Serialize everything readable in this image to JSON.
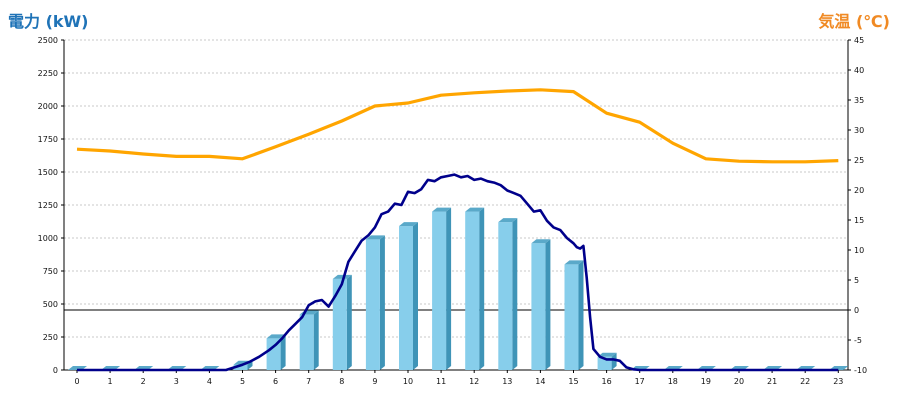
{
  "header": {
    "left_axis_title": "電力 (kW)",
    "right_axis_title": "気温 (℃)"
  },
  "colors": {
    "bar_front": "#87ceeb",
    "bar_side": "#3f94b7",
    "bar_top": "#5aa9c9",
    "power_line": "#00008b",
    "temp_line": "#ffa500",
    "left_title": "#1f73b7",
    "right_title": "#f08a24",
    "grid": "#c8c8c8",
    "zero_line": "#000000"
  },
  "chart_data": {
    "type": "bar",
    "categories": [
      "0",
      "1",
      "2",
      "3",
      "4",
      "5",
      "6",
      "7",
      "8",
      "9",
      "10",
      "11",
      "12",
      "13",
      "14",
      "15",
      "16",
      "17",
      "18",
      "19",
      "20",
      "21",
      "22",
      "23"
    ],
    "left_axis": {
      "label": "電力 (kW)",
      "ylim": [
        0,
        2500
      ],
      "ticks": [
        0,
        250,
        500,
        750,
        1000,
        1250,
        1500,
        1750,
        2000,
        2250,
        2500
      ]
    },
    "right_axis": {
      "label": "気温 (℃)",
      "ylim": [
        -10,
        45
      ],
      "ticks": [
        -10,
        -5,
        0,
        5,
        10,
        15,
        20,
        25,
        30,
        35,
        40,
        45
      ]
    },
    "grid": true,
    "reference_line": {
      "axis": "right",
      "value": 0
    },
    "series": [
      {
        "kind": "bar",
        "axis": "left",
        "values": [
          0,
          0,
          0,
          0,
          0,
          40,
          240,
          420,
          690,
          990,
          1090,
          1200,
          1200,
          1120,
          960,
          800,
          100,
          0,
          0,
          0,
          0,
          0,
          0,
          0
        ]
      },
      {
        "kind": "line",
        "axis": "left",
        "x": [
          0,
          1,
          2,
          3,
          4,
          4.5,
          5,
          5.2,
          5.5,
          5.8,
          6,
          6.2,
          6.4,
          6.6,
          6.8,
          7,
          7.2,
          7.4,
          7.6,
          7.8,
          8,
          8.2,
          8.4,
          8.6,
          8.8,
          9,
          9.2,
          9.4,
          9.6,
          9.8,
          10,
          10.2,
          10.4,
          10.6,
          10.8,
          11,
          11.2,
          11.4,
          11.6,
          11.8,
          12,
          12.2,
          12.4,
          12.6,
          12.8,
          13,
          13.2,
          13.4,
          13.6,
          13.8,
          14,
          14.2,
          14.4,
          14.6,
          14.8,
          15,
          15.1,
          15.2,
          15.3,
          15.4,
          15.5,
          15.6,
          15.8,
          16,
          16.2,
          16.4,
          16.6,
          16.8,
          17,
          18,
          19,
          20,
          21,
          22,
          23
        ],
        "values": [
          0,
          0,
          0,
          0,
          0,
          0,
          40,
          60,
          100,
          150,
          190,
          240,
          300,
          350,
          400,
          490,
          520,
          530,
          480,
          560,
          650,
          820,
          900,
          980,
          1020,
          1080,
          1180,
          1200,
          1260,
          1250,
          1350,
          1340,
          1370,
          1440,
          1430,
          1460,
          1470,
          1480,
          1460,
          1470,
          1440,
          1450,
          1430,
          1420,
          1400,
          1360,
          1340,
          1320,
          1260,
          1200,
          1210,
          1130,
          1080,
          1060,
          1000,
          960,
          930,
          920,
          940,
          700,
          400,
          160,
          100,
          80,
          80,
          70,
          20,
          5,
          0,
          0,
          0,
          0,
          0,
          0,
          0
        ]
      },
      {
        "kind": "line",
        "axis": "right",
        "x": [
          0,
          1,
          2,
          3,
          4,
          5,
          6,
          7,
          8,
          9,
          10,
          11,
          12,
          13,
          14,
          15,
          16,
          17,
          18,
          19,
          20,
          21,
          22,
          23
        ],
        "values": [
          26.8,
          26.5,
          26,
          25.6,
          25.6,
          25.2,
          27.2,
          29.3,
          31.5,
          34,
          34.5,
          35.8,
          36.2,
          36.5,
          36.7,
          36.4,
          32.8,
          31.3,
          27.8,
          25.2,
          24.8,
          24.7,
          24.7,
          24.9
        ]
      }
    ]
  }
}
